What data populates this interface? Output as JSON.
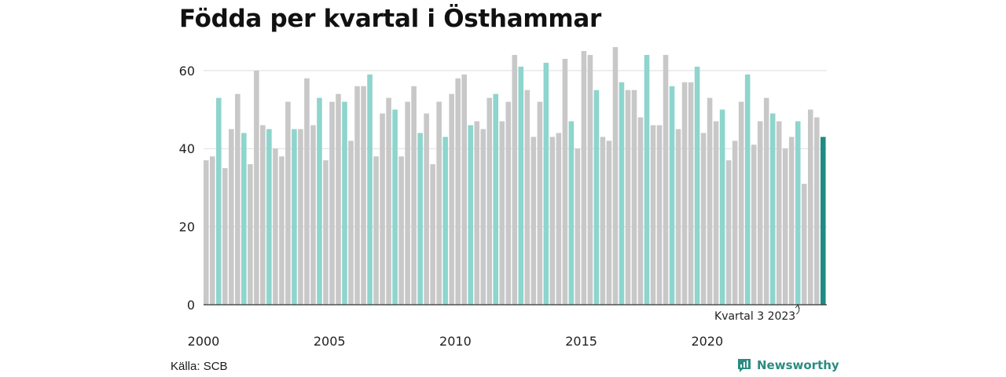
{
  "chart_data": {
    "type": "bar",
    "title": "Födda per kvartal i Östhammar",
    "xlabel": "",
    "ylabel": "",
    "ylim": [
      0,
      66
    ],
    "yticks": [
      0,
      20,
      40,
      60
    ],
    "xtick_labels": [
      "2000",
      "2005",
      "2010",
      "2015",
      "2020"
    ],
    "grid": true,
    "x": [
      "2000K1",
      "2000K2",
      "2000K3",
      "2000K4",
      "2001K1",
      "2001K2",
      "2001K3",
      "2001K4",
      "2002K1",
      "2002K2",
      "2002K3",
      "2002K4",
      "2003K1",
      "2003K2",
      "2003K3",
      "2003K4",
      "2004K1",
      "2004K2",
      "2004K3",
      "2004K4",
      "2005K1",
      "2005K2",
      "2005K3",
      "2005K4",
      "2006K1",
      "2006K2",
      "2006K3",
      "2006K4",
      "2007K1",
      "2007K2",
      "2007K3",
      "2007K4",
      "2008K1",
      "2008K2",
      "2008K3",
      "2008K4",
      "2009K1",
      "2009K2",
      "2009K3",
      "2009K4",
      "2010K1",
      "2010K2",
      "2010K3",
      "2010K4",
      "2011K1",
      "2011K2",
      "2011K3",
      "2011K4",
      "2012K1",
      "2012K2",
      "2012K3",
      "2012K4",
      "2013K1",
      "2013K2",
      "2013K3",
      "2013K4",
      "2014K1",
      "2014K2",
      "2014K3",
      "2014K4",
      "2015K1",
      "2015K2",
      "2015K3",
      "2015K4",
      "2016K1",
      "2016K2",
      "2016K3",
      "2016K4",
      "2017K1",
      "2017K2",
      "2017K3",
      "2017K4",
      "2018K1",
      "2018K2",
      "2018K3",
      "2018K4",
      "2019K1",
      "2019K2",
      "2019K3",
      "2019K4",
      "2020K1",
      "2020K2",
      "2020K3",
      "2020K4",
      "2021K1",
      "2021K2",
      "2021K3",
      "2021K4",
      "2022K1",
      "2022K2",
      "2022K3",
      "2022K4",
      "2023K1",
      "2023K2",
      "2023K3",
      "2023K4",
      "2024K1",
      "2024K2",
      "2024K3"
    ],
    "values": [
      37,
      38,
      53,
      35,
      45,
      54,
      44,
      36,
      60,
      46,
      45,
      40,
      38,
      52,
      45,
      45,
      58,
      46,
      53,
      37,
      52,
      54,
      52,
      42,
      56,
      56,
      59,
      38,
      49,
      53,
      50,
      38,
      52,
      56,
      44,
      49,
      36,
      52,
      43,
      54,
      58,
      59,
      46,
      47,
      45,
      53,
      54,
      47,
      52,
      64,
      61,
      55,
      43,
      52,
      62,
      43,
      44,
      63,
      47,
      40,
      65,
      64,
      55,
      43,
      42,
      66,
      57,
      55,
      55,
      48,
      64,
      46,
      46,
      64,
      56,
      45,
      57,
      57,
      61,
      44,
      53,
      47,
      50,
      37,
      42,
      52,
      59,
      41,
      47,
      53,
      49,
      47,
      40,
      43,
      47,
      31,
      50,
      48,
      43
    ],
    "highlight_color": "#8dd5cd",
    "base_color": "#c8c8c8",
    "latest_color": "#1e8c82",
    "highlight_quarter": 3,
    "annotation": "Kvartal 3 2023"
  },
  "footer": {
    "source": "Källa: SCB",
    "brand": "Newsworthy"
  },
  "colors": {
    "brand": "#2b8c82",
    "grid": "#dddddd",
    "axis": "#333333"
  }
}
